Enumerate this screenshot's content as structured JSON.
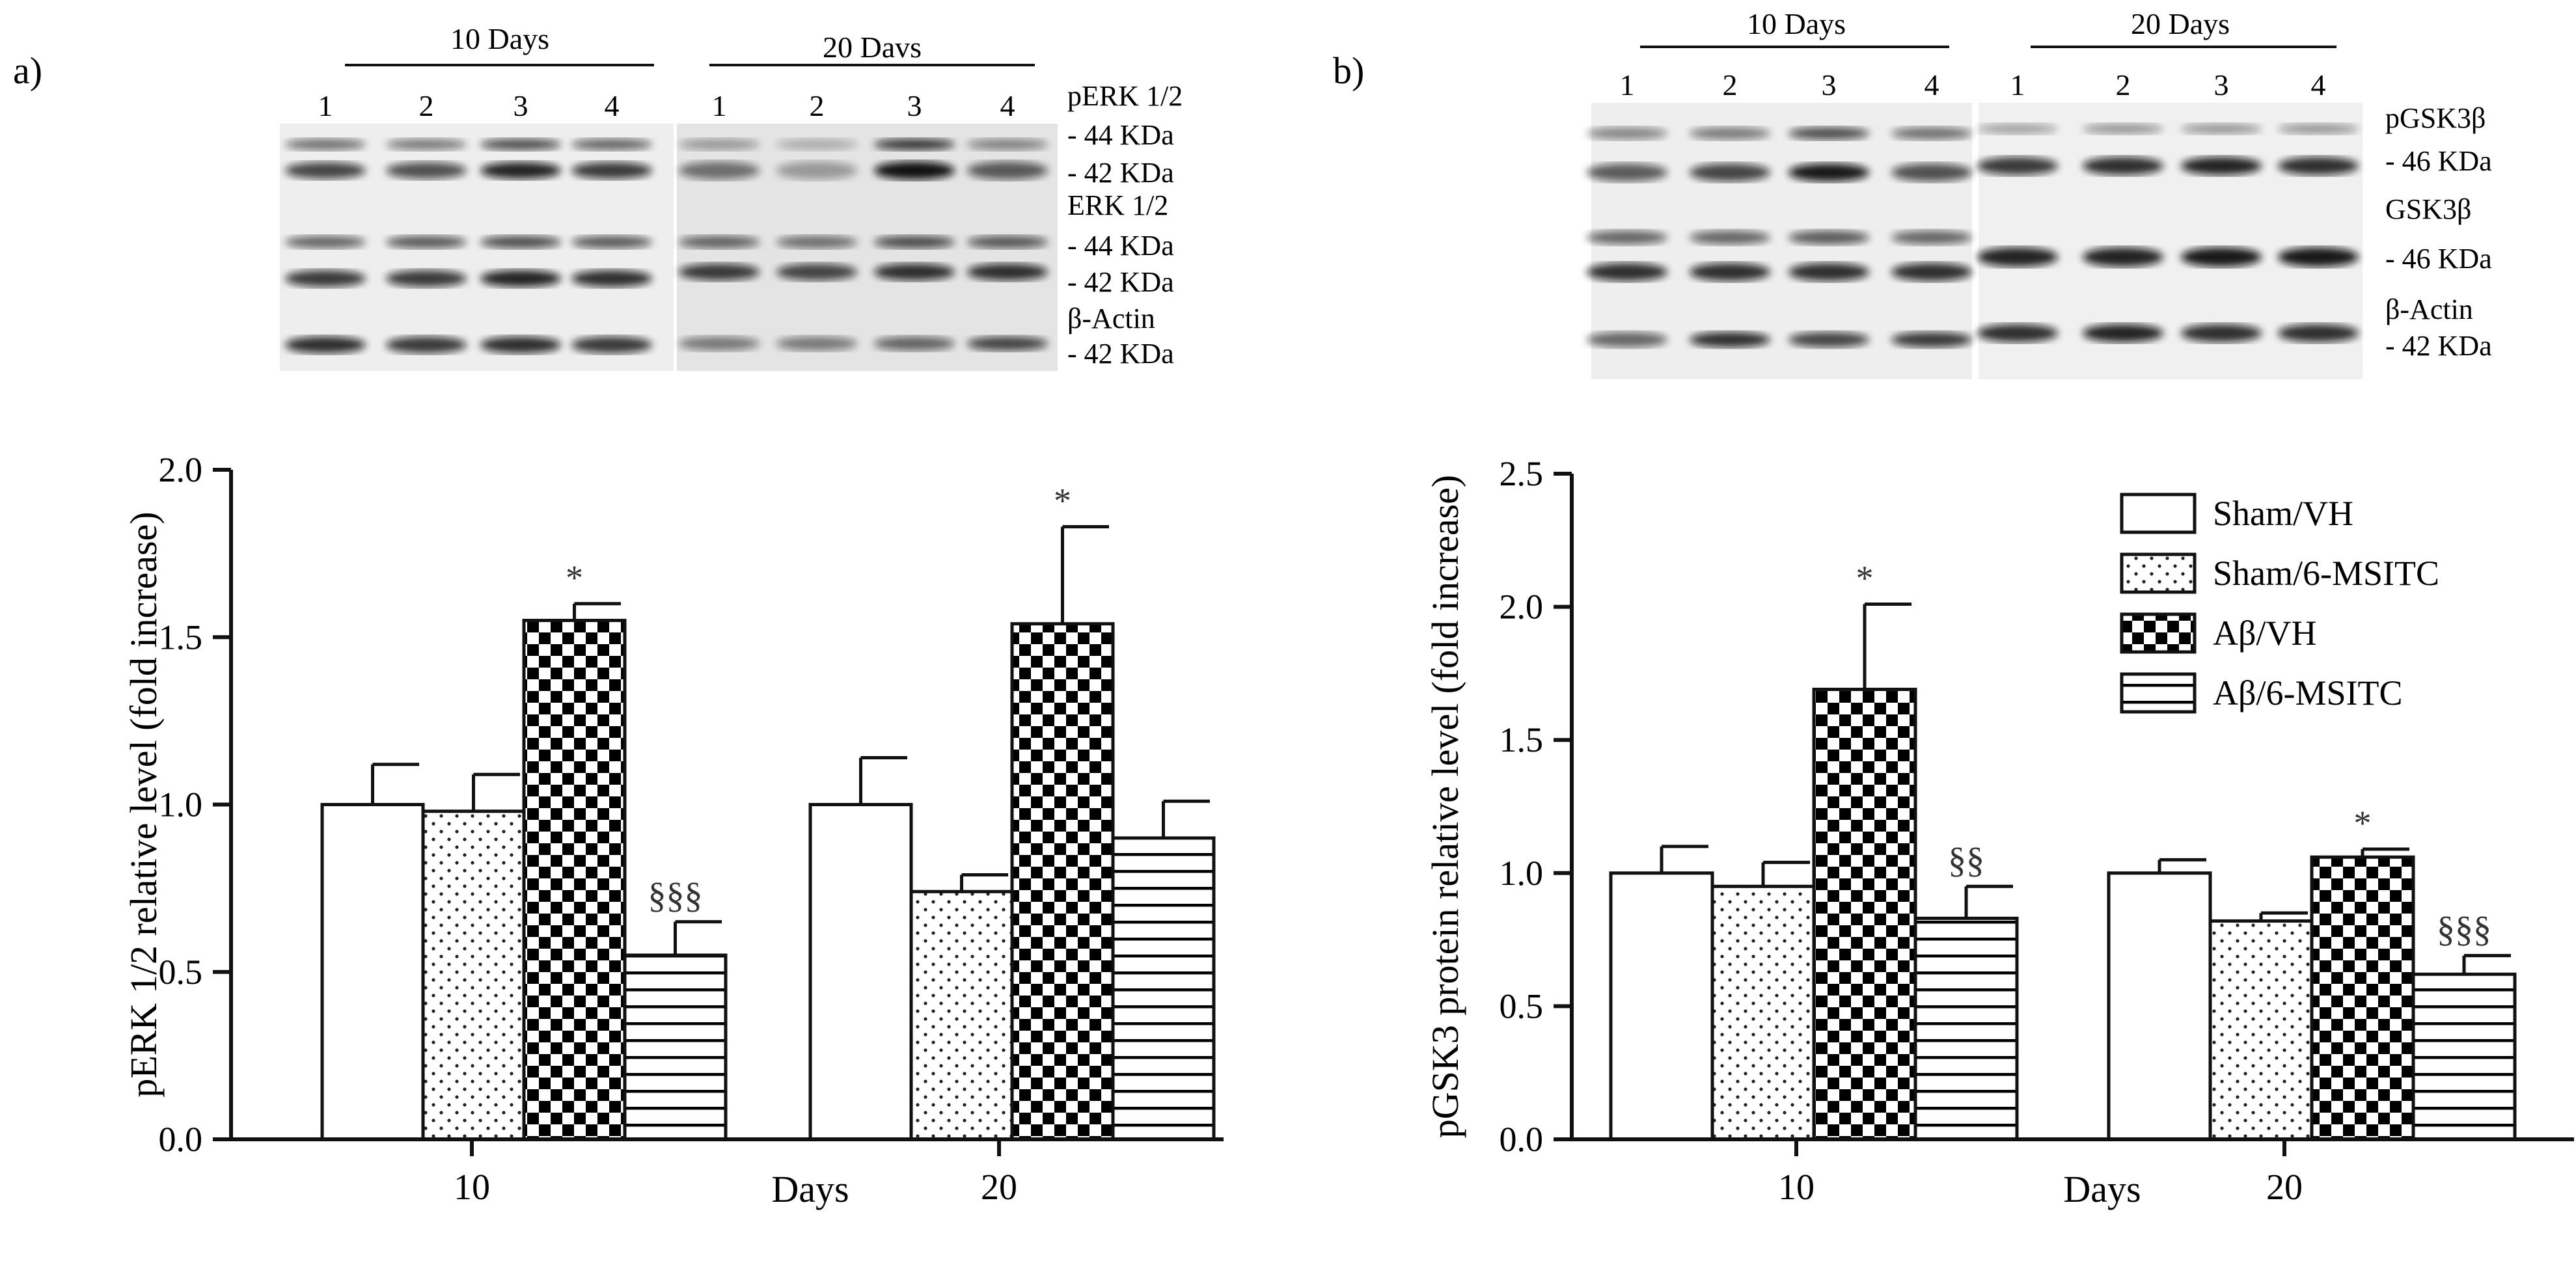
{
  "panels": [
    {
      "letter": "a)",
      "blot": {
        "lanes": [
          "1",
          "2",
          "3",
          "4"
        ],
        "groups": [
          "10 Days",
          "20 Davs"
        ],
        "labels": [
          "pERK 1/2",
          "- 44 KDa",
          "- 42 KDa",
          "ERK 1/2",
          "- 44 KDa",
          "- 42 KDa",
          "β-Actin",
          "- 42 KDa"
        ]
      }
    },
    {
      "letter": "b)",
      "blot": {
        "lanes": [
          "1",
          "2",
          "3",
          "4"
        ],
        "groups": [
          "10 Days",
          "20 Days"
        ],
        "labels": [
          "pGSK3β",
          "- 46 KDa",
          "GSK3β",
          "- 46 KDa",
          "β-Actin",
          "- 42 KDa"
        ]
      }
    }
  ],
  "legend": {
    "entries": [
      "Sham/VH",
      "Sham/6-MSITC",
      "Aβ/VH",
      "Aβ/6-MSITC"
    ]
  },
  "colors": {
    "axis": "#111111",
    "bar_fill": "#ffffff"
  },
  "chart_data": [
    {
      "type": "bar",
      "ylabel": "pERK 1/2 relative level (fold increase)",
      "xlabel": "Days",
      "categories": [
        "10",
        "20"
      ],
      "ylim": [
        0,
        2.0
      ],
      "yticks": [
        "0.0",
        "0.5",
        "1.0",
        "1.5",
        "2.0"
      ],
      "series": [
        {
          "name": "Sham/VH",
          "values": [
            1.0,
            1.0
          ],
          "errors": [
            0.12,
            0.14
          ],
          "pattern": "none"
        },
        {
          "name": "Sham/6-MSITC",
          "values": [
            0.98,
            0.74
          ],
          "errors": [
            0.11,
            0.05
          ],
          "pattern": "dots"
        },
        {
          "name": "Aβ/VH",
          "values": [
            1.55,
            1.54
          ],
          "errors": [
            0.05,
            0.29
          ],
          "pattern": "checker"
        },
        {
          "name": "Aβ/6-MSITC",
          "values": [
            0.55,
            0.9
          ],
          "errors": [
            0.1,
            0.11
          ],
          "pattern": "hlines"
        }
      ],
      "annotations": [
        {
          "category": 0,
          "series": 2,
          "text": "*"
        },
        {
          "category": 0,
          "series": 3,
          "text": "§§§"
        },
        {
          "category": 1,
          "series": 2,
          "text": "*"
        }
      ],
      "grid": false
    },
    {
      "type": "bar",
      "ylabel": "pGSK3 protein relative level (fold increase)",
      "xlabel": "Days",
      "categories": [
        "10",
        "20"
      ],
      "ylim": [
        0,
        2.5
      ],
      "yticks": [
        "0.0",
        "0.5",
        "1.0",
        "1.5",
        "2.0",
        "2.5"
      ],
      "series": [
        {
          "name": "Sham/VH",
          "values": [
            1.0,
            1.0
          ],
          "errors": [
            0.1,
            0.05
          ],
          "pattern": "none"
        },
        {
          "name": "Sham/6-MSITC",
          "values": [
            0.95,
            0.82
          ],
          "errors": [
            0.09,
            0.03
          ],
          "pattern": "dots"
        },
        {
          "name": "Aβ/VH",
          "values": [
            1.69,
            1.06
          ],
          "errors": [
            0.32,
            0.03
          ],
          "pattern": "checker"
        },
        {
          "name": "Aβ/6-MSITC",
          "values": [
            0.83,
            0.62
          ],
          "errors": [
            0.12,
            0.07
          ],
          "pattern": "hlines"
        }
      ],
      "annotations": [
        {
          "category": 0,
          "series": 2,
          "text": "*"
        },
        {
          "category": 0,
          "series": 3,
          "text": "§§"
        },
        {
          "category": 1,
          "series": 2,
          "text": "*"
        },
        {
          "category": 1,
          "series": 3,
          "text": "§§§"
        }
      ],
      "grid": false,
      "legend": "top-right"
    }
  ]
}
